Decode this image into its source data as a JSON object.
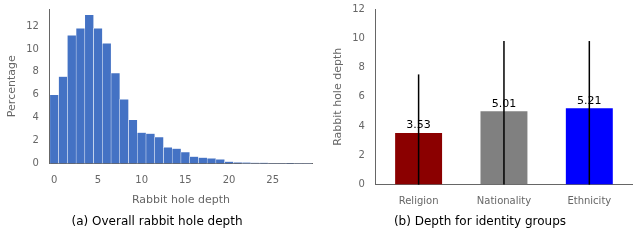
{
  "chart_data": [
    {
      "type": "histogram",
      "title": "(a) Overall rabbit hole depth",
      "xlabel": "Rabbit hole depth",
      "ylabel": "Percentage",
      "bins": [
        -0.5,
        0.5,
        1.5,
        2.5,
        3.5,
        4.5,
        5.5,
        6.5,
        7.5,
        8.5,
        9.5,
        10.5,
        11.5,
        12.5,
        13.5,
        14.5,
        15.5,
        16.5,
        17.5,
        18.5,
        19.5,
        20.5,
        21.5,
        22.5,
        23.5,
        24.5,
        25.5,
        26.5,
        27.5,
        28.5,
        29.5
      ],
      "values": [
        6.0,
        7.6,
        11.2,
        11.8,
        13.0,
        11.8,
        10.5,
        7.9,
        5.6,
        3.8,
        2.7,
        2.6,
        2.3,
        1.4,
        1.3,
        1.0,
        0.6,
        0.5,
        0.45,
        0.35,
        0.15,
        0.1,
        0.08,
        0.06,
        0.05,
        0.03,
        0.02,
        0.015,
        0.01,
        0.005
      ],
      "color": "#4472C4",
      "xlim": [
        -0.5,
        29.5
      ],
      "xticks": [
        0,
        5,
        10,
        15,
        20,
        25
      ],
      "ylim": [
        0,
        13.5
      ],
      "yticks": [
        0,
        2,
        4,
        6,
        8,
        10,
        12
      ],
      "grid": false
    },
    {
      "type": "bar",
      "title": "(b) Depth for identity groups",
      "ylabel": "Rabbit hole depth",
      "categories": [
        "Religion",
        "Nationality",
        "Ethnicity"
      ],
      "values": [
        3.53,
        5.01,
        5.21
      ],
      "errors_low": [
        3.53,
        5.01,
        5.21
      ],
      "errors_high": [
        4.0,
        4.8,
        4.6
      ],
      "colors": [
        "#8B0000",
        "#808080",
        "#0000FF"
      ],
      "ylim": [
        0,
        12
      ],
      "yticks": [
        0,
        2,
        4,
        6,
        8,
        10,
        12
      ],
      "data_labels": true,
      "grid": false
    }
  ]
}
